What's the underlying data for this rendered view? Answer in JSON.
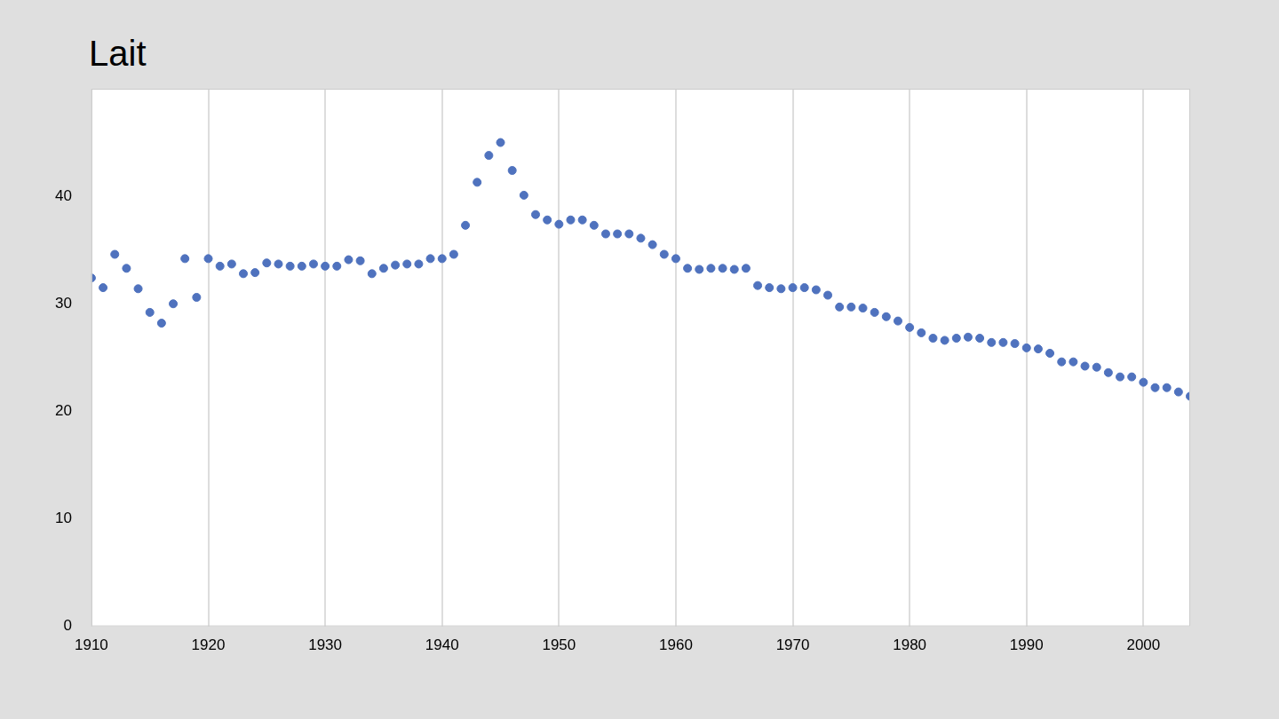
{
  "chart_data": {
    "type": "scatter",
    "title": "Lait",
    "x": [
      1910,
      1911,
      1912,
      1913,
      1914,
      1915,
      1916,
      1917,
      1918,
      1919,
      1920,
      1921,
      1922,
      1923,
      1924,
      1925,
      1926,
      1927,
      1928,
      1929,
      1930,
      1931,
      1932,
      1933,
      1934,
      1935,
      1936,
      1937,
      1938,
      1939,
      1940,
      1941,
      1942,
      1943,
      1944,
      1945,
      1946,
      1947,
      1948,
      1949,
      1950,
      1951,
      1952,
      1953,
      1954,
      1955,
      1956,
      1957,
      1958,
      1959,
      1960,
      1961,
      1962,
      1963,
      1964,
      1965,
      1966,
      1967,
      1968,
      1969,
      1970,
      1971,
      1972,
      1973,
      1974,
      1975,
      1976,
      1977,
      1978,
      1979,
      1980,
      1981,
      1982,
      1983,
      1984,
      1985,
      1986,
      1987,
      1988,
      1989,
      1990,
      1991,
      1992,
      1993,
      1994,
      1995,
      1996,
      1997,
      1998,
      1999,
      2000,
      2001,
      2002,
      2003,
      2004
    ],
    "values": [
      32.4,
      31.5,
      34.6,
      33.3,
      31.4,
      29.2,
      28.2,
      30.0,
      34.2,
      30.6,
      34.2,
      33.5,
      33.7,
      32.8,
      32.9,
      33.8,
      33.7,
      33.5,
      33.5,
      33.7,
      33.5,
      33.5,
      34.1,
      34.0,
      32.8,
      33.3,
      33.6,
      33.7,
      33.7,
      34.2,
      34.2,
      34.6,
      37.3,
      41.3,
      43.8,
      45.0,
      42.4,
      40.1,
      38.3,
      37.8,
      37.4,
      37.8,
      37.8,
      37.3,
      36.5,
      36.5,
      36.5,
      36.1,
      35.5,
      34.6,
      34.2,
      33.3,
      33.2,
      33.3,
      33.3,
      33.2,
      33.3,
      31.7,
      31.5,
      31.4,
      31.5,
      31.5,
      31.3,
      30.8,
      29.7,
      29.7,
      29.6,
      29.2,
      28.8,
      28.4,
      27.8,
      27.3,
      26.8,
      26.6,
      26.8,
      26.9,
      26.8,
      26.4,
      26.4,
      26.3,
      25.9,
      25.8,
      25.4,
      24.6,
      24.6,
      24.2,
      24.1,
      23.6,
      23.2,
      23.2,
      22.7,
      22.2,
      22.2,
      21.8,
      21.4
    ],
    "color": "#4f72be",
    "marker": "circle",
    "xlim": [
      1910,
      2004
    ],
    "xticks": [
      1910,
      1920,
      1930,
      1940,
      1950,
      1960,
      1970,
      1980,
      1990,
      2000
    ],
    "ylim": [
      0,
      50
    ],
    "yticks": [
      0,
      10,
      20,
      30,
      40
    ],
    "grid": "x"
  }
}
